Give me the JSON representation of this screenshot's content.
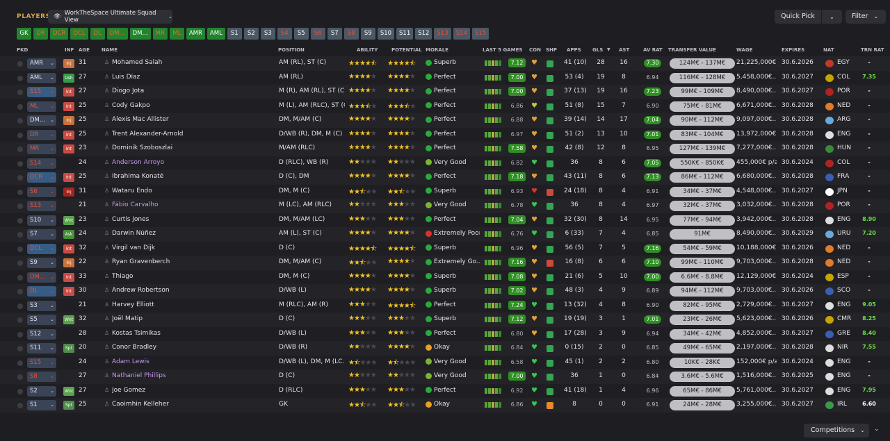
{
  "header": {
    "section_title": "PLAYERS",
    "view_name": "WorkTheSpace Ultimate Squad View",
    "quick_pick": "Quick Pick",
    "filter": "Filter"
  },
  "position_pills": [
    {
      "label": "GK",
      "style": "g"
    },
    {
      "label": "DR",
      "style": "gr"
    },
    {
      "label": "DCR",
      "style": "gr"
    },
    {
      "label": "DCL",
      "style": "gr"
    },
    {
      "label": "DL",
      "style": "gr"
    },
    {
      "label": "DM...",
      "style": "gr"
    },
    {
      "label": "DM...",
      "style": "g"
    },
    {
      "label": "MR",
      "style": "gr"
    },
    {
      "label": "ML",
      "style": "gr"
    },
    {
      "label": "AMR",
      "style": "g"
    },
    {
      "label": "AML",
      "style": "g"
    },
    {
      "label": "S1",
      "style": "s"
    },
    {
      "label": "S2",
      "style": "s"
    },
    {
      "label": "S3",
      "style": "s"
    },
    {
      "label": "S4",
      "style": "sr"
    },
    {
      "label": "S5",
      "style": "s"
    },
    {
      "label": "S6",
      "style": "sr"
    },
    {
      "label": "S7",
      "style": "s"
    },
    {
      "label": "S8",
      "style": "sr"
    },
    {
      "label": "S9",
      "style": "s"
    },
    {
      "label": "S10",
      "style": "s"
    },
    {
      "label": "S11",
      "style": "s"
    },
    {
      "label": "S12",
      "style": "s"
    },
    {
      "label": "S13",
      "style": "sr"
    },
    {
      "label": "S14",
      "style": "sr"
    },
    {
      "label": "S15",
      "style": "sr"
    }
  ],
  "columns": {
    "pkd": "PKD",
    "inf": "INF",
    "age": "AGE",
    "name": "NAME",
    "position": "POSITION",
    "ability": "ABILITY",
    "potential": "POTENTIAL",
    "morale": "MORALE",
    "last5": "LAST 5 GAMES",
    "con": "CON",
    "shp": "SHP",
    "apps": "APPS",
    "gls": "GLS",
    "ast": "AST",
    "avrat": "AV RAT",
    "tv": "TRANSFER VALUE",
    "wage": "WAGE",
    "expires": "EXPIRES",
    "nat": "NAT",
    "trnrat": "TRN RAT"
  },
  "players": [
    {
      "pkd": "AMR",
      "pkd_style": "",
      "inf": "Inj",
      "inf_style": "inj",
      "age": "31",
      "name": "Mohamed Salah",
      "loan": false,
      "position": "AM (RL), ST (C)",
      "ability": 4.5,
      "potential": 4.5,
      "morale": "Superb",
      "morale_style": "sup",
      "last5": "7.12",
      "last5_hl": true,
      "con_color": "#e2a03a",
      "shp": "gr",
      "apps": "41 (10)",
      "gls": "28",
      "ast": "16",
      "avrat": "7.30",
      "avrat_hl": true,
      "tv": "124M€ - 137M€",
      "wage": "21,225,000€...",
      "expires": "30.6.2026",
      "nat": "EGY",
      "flag": "#c0392b",
      "trn": "-",
      "trn_style": "wh"
    },
    {
      "pkd": "AML",
      "pkd_style": "",
      "inf": "Ush",
      "inf_style": "ush",
      "age": "27",
      "name": "Luis Díaz",
      "loan": false,
      "position": "AM (RL)",
      "ability": 4,
      "potential": 4,
      "morale": "Perfect",
      "morale_style": "perf",
      "last5": "7.00",
      "last5_hl": true,
      "con_color": "#e2a03a",
      "shp": "gr",
      "apps": "53 (4)",
      "gls": "19",
      "ast": "8",
      "avrat": "6.94",
      "avrat_hl": false,
      "tv": "116M€ - 128M€",
      "wage": "5,458,000€...",
      "expires": "30.6.2027",
      "nat": "COL",
      "flag": "#c8a400",
      "trn": "7.35",
      "trn_style": "gr"
    },
    {
      "pkd": "S15",
      "pkd_style": "blue red",
      "inf": "Int",
      "inf_style": "int",
      "age": "27",
      "name": "Diogo Jota",
      "loan": false,
      "position": "M (R), AM (RL), ST (C)",
      "ability": 4,
      "potential": 4,
      "morale": "Perfect",
      "morale_style": "perf",
      "last5": "7.00",
      "last5_hl": true,
      "con_color": "#e2a03a",
      "shp": "gr",
      "apps": "37 (13)",
      "gls": "19",
      "ast": "16",
      "avrat": "7.23",
      "avrat_hl": true,
      "tv": "99M€ - 109M€",
      "wage": "8,490,000€...",
      "expires": "30.6.2027",
      "nat": "POR",
      "flag": "#b22222",
      "trn": "-",
      "trn_style": "wh"
    },
    {
      "pkd": "ML",
      "pkd_style": "red",
      "inf": "Int",
      "inf_style": "int",
      "age": "25",
      "name": "Cody Gakpo",
      "loan": false,
      "position": "M (L), AM (RLC), ST (C)",
      "ability": 3.5,
      "potential": 3.5,
      "morale": "Perfect",
      "morale_style": "perf",
      "last5": "6.86",
      "last5_hl": false,
      "con_color": "#c5c53a",
      "shp": "gr",
      "apps": "51 (8)",
      "gls": "15",
      "ast": "7",
      "avrat": "6.90",
      "avrat_hl": false,
      "tv": "75M€ - 81M€",
      "wage": "6,671,000€...",
      "expires": "30.6.2028",
      "nat": "NED",
      "flag": "#e07b2a",
      "trn": "-",
      "trn_style": "wh"
    },
    {
      "pkd": "DM...",
      "pkd_style": "",
      "inf": "Inj",
      "inf_style": "inj",
      "age": "25",
      "name": "Alexis Mac Allister",
      "loan": false,
      "position": "DM, M/AM (C)",
      "ability": 4,
      "potential": 4,
      "morale": "Perfect",
      "morale_style": "perf",
      "last5": "6.88",
      "last5_hl": false,
      "con_color": "#e2a03a",
      "shp": "gr",
      "apps": "39 (14)",
      "gls": "14",
      "ast": "17",
      "avrat": "7.04",
      "avrat_hl": true,
      "tv": "90M€ - 112M€",
      "wage": "9,097,000€...",
      "expires": "30.6.2028",
      "nat": "ARG",
      "flag": "#6aa9dd",
      "trn": "-",
      "trn_style": "wh"
    },
    {
      "pkd": "DR",
      "pkd_style": "red",
      "inf": "Int",
      "inf_style": "int",
      "age": "25",
      "name": "Trent Alexander-Arnold",
      "loan": false,
      "position": "D/WB (R), DM, M (C)",
      "ability": 4,
      "potential": 4,
      "morale": "Perfect",
      "morale_style": "perf",
      "last5": "6.97",
      "last5_hl": false,
      "con_color": "#e2a03a",
      "shp": "gr",
      "apps": "51 (2)",
      "gls": "13",
      "ast": "10",
      "avrat": "7.01",
      "avrat_hl": true,
      "tv": "83M€ - 104M€",
      "wage": "13,972,000€...",
      "expires": "30.6.2028",
      "nat": "ENG",
      "flag": "#dddddd",
      "trn": "-",
      "trn_style": "wh"
    },
    {
      "pkd": "MR",
      "pkd_style": "red",
      "inf": "Int",
      "inf_style": "int",
      "age": "23",
      "name": "Dominik Szoboszlai",
      "loan": false,
      "position": "M/AM (RLC)",
      "ability": 4,
      "potential": 4,
      "morale": "Perfect",
      "morale_style": "perf",
      "last5": "7.58",
      "last5_hl": true,
      "con_color": "#e2a03a",
      "shp": "gr",
      "apps": "42 (8)",
      "gls": "12",
      "ast": "8",
      "avrat": "6.95",
      "avrat_hl": false,
      "tv": "127M€ - 139M€",
      "wage": "7,277,000€...",
      "expires": "30.6.2028",
      "nat": "HUN",
      "flag": "#3a8a3a",
      "trn": "-",
      "trn_style": "wh"
    },
    {
      "pkd": "S14",
      "pkd_style": "red",
      "inf": "",
      "inf_style": "",
      "age": "24",
      "name": "Anderson Arroyo",
      "loan": true,
      "position": "D (RLC), WB (R)",
      "ability": 2,
      "potential": 2,
      "morale": "Very Good",
      "morale_style": "vg",
      "last5": "6.82",
      "last5_hl": false,
      "con_color": "#35c653",
      "shp": "gr",
      "apps": "36",
      "gls": "8",
      "ast": "6",
      "avrat": "7.05",
      "avrat_hl": true,
      "tv": "550K€ - 850K€",
      "wage": "455,000€ p/a",
      "expires": "30.6.2024",
      "nat": "COL",
      "flag": "#b22222",
      "trn": "-",
      "trn_style": "wh"
    },
    {
      "pkd": "DCR",
      "pkd_style": "blue red",
      "inf": "Int",
      "inf_style": "int",
      "age": "25",
      "name": "Ibrahima Konaté",
      "loan": false,
      "position": "D (C), DM",
      "ability": 4,
      "potential": 4,
      "morale": "Perfect",
      "morale_style": "perf",
      "last5": "7.18",
      "last5_hl": true,
      "con_color": "#e2a03a",
      "shp": "gr",
      "apps": "43 (11)",
      "gls": "8",
      "ast": "6",
      "avrat": "7.13",
      "avrat_hl": true,
      "tv": "86M€ - 112M€",
      "wage": "6,680,000€...",
      "expires": "30.6.2028",
      "nat": "FRA",
      "flag": "#3a5fb0",
      "trn": "-",
      "trn_style": "wh"
    },
    {
      "pkd": "S6",
      "pkd_style": "red",
      "inf": "Inj",
      "inf_style": "inj2",
      "age": "31",
      "name": "Wataru Endo",
      "loan": false,
      "position": "DM, M (C)",
      "ability": 2.5,
      "potential": 2.5,
      "morale": "Superb",
      "morale_style": "sup",
      "last5": "6.93",
      "last5_hl": false,
      "con_color": "#d03a2a",
      "shp": "rd",
      "apps": "24 (18)",
      "gls": "8",
      "ast": "4",
      "avrat": "6.91",
      "avrat_hl": false,
      "tv": "34M€ - 37M€",
      "wage": "4,548,000€...",
      "expires": "30.6.2027",
      "nat": "JPN",
      "flag": "#ffffff",
      "trn": "-",
      "trn_style": "wh"
    },
    {
      "pkd": "S13",
      "pkd_style": "red",
      "inf": "",
      "inf_style": "",
      "age": "21",
      "name": "Fábio Carvalho",
      "loan": true,
      "position": "M (LC), AM (RLC)",
      "ability": 2,
      "potential": 3,
      "morale": "Very Good",
      "morale_style": "vg",
      "last5": "6.78",
      "last5_hl": false,
      "con_color": "#35c653",
      "shp": "gr",
      "apps": "36",
      "gls": "8",
      "ast": "4",
      "avrat": "6.97",
      "avrat_hl": false,
      "tv": "32M€ - 37M€",
      "wage": "3,032,000€...",
      "expires": "30.6.2028",
      "nat": "POR",
      "flag": "#b22222",
      "trn": "-",
      "trn_style": "wh"
    },
    {
      "pkd": "S10",
      "pkd_style": "",
      "inf": "Wnt",
      "inf_style": "wnt",
      "age": "23",
      "name": "Curtis Jones",
      "loan": false,
      "position": "DM, M/AM (LC)",
      "ability": 3,
      "potential": 3,
      "morale": "Perfect",
      "morale_style": "perf",
      "last5": "7.04",
      "last5_hl": true,
      "con_color": "#e2a03a",
      "shp": "gr",
      "apps": "32 (30)",
      "gls": "8",
      "ast": "14",
      "avrat": "6.95",
      "avrat_hl": false,
      "tv": "77M€ - 94M€",
      "wage": "3,942,000€...",
      "expires": "30.6.2028",
      "nat": "ENG",
      "flag": "#dddddd",
      "trn": "8.90",
      "trn_style": "gr"
    },
    {
      "pkd": "S7",
      "pkd_style": "",
      "inf": "Ask",
      "inf_style": "ask",
      "age": "24",
      "name": "Darwin Núñez",
      "loan": false,
      "position": "AM (L), ST (C)",
      "ability": 4,
      "potential": 4,
      "morale": "Extremely Poor",
      "morale_style": "ep",
      "last5": "6.76",
      "last5_hl": false,
      "con_color": "#35c653",
      "shp": "gr",
      "apps": "6 (33)",
      "gls": "7",
      "ast": "4",
      "avrat": "6.85",
      "avrat_hl": false,
      "tv": "91M€",
      "wage": "8,490,000€...",
      "expires": "30.6.2029",
      "nat": "URU",
      "flag": "#6aa9dd",
      "trn": "7.20",
      "trn_style": "gr"
    },
    {
      "pkd": "DCL",
      "pkd_style": "blue red",
      "inf": "Int",
      "inf_style": "int",
      "age": "32",
      "name": "Virgil van Dijk",
      "loan": false,
      "position": "D (C)",
      "ability": 4.5,
      "potential": 4.5,
      "morale": "Superb",
      "morale_style": "sup",
      "last5": "6.96",
      "last5_hl": false,
      "con_color": "#e2a03a",
      "shp": "gr",
      "apps": "56 (5)",
      "gls": "7",
      "ast": "5",
      "avrat": "7.16",
      "avrat_hl": true,
      "tv": "54M€ - 59M€",
      "wage": "10,188,000€...",
      "expires": "30.6.2026",
      "nat": "NED",
      "flag": "#e07b2a",
      "trn": "-",
      "trn_style": "wh"
    },
    {
      "pkd": "S9",
      "pkd_style": "",
      "inf": "Inj",
      "inf_style": "inj",
      "age": "22",
      "name": "Ryan Gravenberch",
      "loan": false,
      "position": "DM, M/AM (C)",
      "ability": 2.5,
      "potential": 4,
      "morale": "Extremely Go...",
      "morale_style": "eg",
      "last5": "7.16",
      "last5_hl": true,
      "con_color": "#e2a03a",
      "shp": "rd",
      "apps": "16 (8)",
      "gls": "6",
      "ast": "6",
      "avrat": "7.10",
      "avrat_hl": true,
      "tv": "99M€ - 110M€",
      "wage": "9,703,000€...",
      "expires": "30.6.2028",
      "nat": "NED",
      "flag": "#e07b2a",
      "trn": "-",
      "trn_style": "wh"
    },
    {
      "pkd": "DM...",
      "pkd_style": "red",
      "inf": "Int",
      "inf_style": "int",
      "age": "33",
      "name": "Thiago",
      "loan": false,
      "position": "DM, M (C)",
      "ability": 4,
      "potential": 4,
      "morale": "Superb",
      "morale_style": "sup",
      "last5": "7.08",
      "last5_hl": true,
      "con_color": "#e2a03a",
      "shp": "gr",
      "apps": "21 (6)",
      "gls": "5",
      "ast": "10",
      "avrat": "7.00",
      "avrat_hl": true,
      "tv": "6.6M€ - 8.8M€",
      "wage": "12,129,000€...",
      "expires": "30.6.2024",
      "nat": "ESP",
      "flag": "#c8a400",
      "trn": "-",
      "trn_style": "wh"
    },
    {
      "pkd": "DL",
      "pkd_style": "blue red",
      "inf": "Int",
      "inf_style": "int",
      "age": "30",
      "name": "Andrew Robertson",
      "loan": false,
      "position": "D/WB (L)",
      "ability": 4,
      "potential": 4,
      "morale": "Superb",
      "morale_style": "sup",
      "last5": "7.02",
      "last5_hl": true,
      "con_color": "#e2a03a",
      "shp": "gr",
      "apps": "48 (3)",
      "gls": "4",
      "ast": "9",
      "avrat": "6.89",
      "avrat_hl": false,
      "tv": "94M€ - 112M€",
      "wage": "9,703,000€...",
      "expires": "30.6.2026",
      "nat": "SCO",
      "flag": "#3a5fb0",
      "trn": "-",
      "trn_style": "wh"
    },
    {
      "pkd": "S3",
      "pkd_style": "",
      "inf": "",
      "inf_style": "",
      "age": "21",
      "name": "Harvey Elliott",
      "loan": false,
      "position": "M (RLC), AM (R)",
      "ability": 3,
      "potential": 4.5,
      "morale": "Perfect",
      "morale_style": "perf",
      "last5": "7.24",
      "last5_hl": true,
      "con_color": "#35c653",
      "shp": "gr",
      "apps": "13 (32)",
      "gls": "4",
      "ast": "8",
      "avrat": "6.90",
      "avrat_hl": false,
      "tv": "82M€ - 95M€",
      "wage": "2,729,000€...",
      "expires": "30.6.2027",
      "nat": "ENG",
      "flag": "#dddddd",
      "trn": "9.05",
      "trn_style": "gr"
    },
    {
      "pkd": "S5",
      "pkd_style": "",
      "inf": "Wnt",
      "inf_style": "wnt",
      "age": "32",
      "name": "Joël Matip",
      "loan": false,
      "position": "D (C)",
      "ability": 3,
      "potential": 3,
      "morale": "Superb",
      "morale_style": "sup",
      "last5": "7.12",
      "last5_hl": true,
      "con_color": "#e2a03a",
      "shp": "gr",
      "apps": "19 (19)",
      "gls": "3",
      "ast": "1",
      "avrat": "7.01",
      "avrat_hl": true,
      "tv": "23M€ - 26M€",
      "wage": "5,623,000€...",
      "expires": "30.6.2026",
      "nat": "CMR",
      "flag": "#c8a400",
      "trn": "8.25",
      "trn_style": "gr"
    },
    {
      "pkd": "S12",
      "pkd_style": "",
      "inf": "",
      "inf_style": "",
      "age": "28",
      "name": "Kostas Tsimikas",
      "loan": false,
      "position": "D/WB (L)",
      "ability": 3,
      "potential": 3,
      "morale": "Perfect",
      "morale_style": "perf",
      "last5": "6.80",
      "last5_hl": false,
      "con_color": "#e2a03a",
      "shp": "gr",
      "apps": "17 (28)",
      "gls": "3",
      "ast": "9",
      "avrat": "6.94",
      "avrat_hl": false,
      "tv": "34M€ - 42M€",
      "wage": "4,852,000€...",
      "expires": "30.6.2027",
      "nat": "GRE",
      "flag": "#3a5fb0",
      "trn": "8.40",
      "trn_style": "gr"
    },
    {
      "pkd": "S11",
      "pkd_style": "",
      "inf": "Spt",
      "inf_style": "spt",
      "age": "20",
      "name": "Conor Bradley",
      "loan": false,
      "position": "D/WB (R)",
      "ability": 2,
      "potential": 4,
      "morale": "Okay",
      "morale_style": "ok",
      "last5": "6.84",
      "last5_hl": false,
      "con_color": "#35c653",
      "shp": "gr",
      "apps": "0 (15)",
      "gls": "2",
      "ast": "0",
      "avrat": "6.85",
      "avrat_hl": false,
      "tv": "49M€ - 65M€",
      "wage": "2,197,000€...",
      "expires": "30.6.2028",
      "nat": "NIR",
      "flag": "#dddddd",
      "trn": "7.55",
      "trn_style": "gr"
    },
    {
      "pkd": "S15",
      "pkd_style": "red",
      "inf": "",
      "inf_style": "",
      "age": "24",
      "name": "Adam Lewis",
      "loan": true,
      "position": "D/WB (L), DM, M (LC...",
      "ability": 1.5,
      "potential": 1.5,
      "morale": "Very Good",
      "morale_style": "vg",
      "last5": "6.58",
      "last5_hl": false,
      "con_color": "#35c653",
      "shp": "gr",
      "apps": "45 (1)",
      "gls": "2",
      "ast": "2",
      "avrat": "6.80",
      "avrat_hl": false,
      "tv": "10K€ - 28K€",
      "wage": "152,000€ p/a",
      "expires": "30.6.2024",
      "nat": "ENG",
      "flag": "#dddddd",
      "trn": "-",
      "trn_style": "wh"
    },
    {
      "pkd": "S8",
      "pkd_style": "red",
      "inf": "",
      "inf_style": "",
      "age": "27",
      "name": "Nathaniel Phillips",
      "loan": true,
      "position": "D (C)",
      "ability": 2,
      "potential": 2,
      "morale": "Very Good",
      "morale_style": "vg",
      "last5": "7.00",
      "last5_hl": true,
      "con_color": "#35c653",
      "shp": "gr",
      "apps": "36",
      "gls": "1",
      "ast": "0",
      "avrat": "6.84",
      "avrat_hl": false,
      "tv": "3.6M€ - 5.6M€",
      "wage": "1,516,000€...",
      "expires": "30.6.2025",
      "nat": "ENG",
      "flag": "#dddddd",
      "trn": "-",
      "trn_style": "wh"
    },
    {
      "pkd": "S2",
      "pkd_style": "",
      "inf": "Wnt",
      "inf_style": "wnt",
      "age": "27",
      "name": "Joe Gomez",
      "loan": false,
      "position": "D (RLC)",
      "ability": 3,
      "potential": 3,
      "morale": "Perfect",
      "morale_style": "perf",
      "last5": "6.92",
      "last5_hl": false,
      "con_color": "#35c653",
      "shp": "gr",
      "apps": "41 (18)",
      "gls": "1",
      "ast": "4",
      "avrat": "6.96",
      "avrat_hl": false,
      "tv": "65M€ - 86M€",
      "wage": "5,761,000€...",
      "expires": "30.6.2027",
      "nat": "ENG",
      "flag": "#dddddd",
      "trn": "7.95",
      "trn_style": "gr"
    },
    {
      "pkd": "S1",
      "pkd_style": "",
      "inf": "Spt",
      "inf_style": "spt",
      "age": "25",
      "name": "Caoimhin Kelleher",
      "loan": false,
      "position": "GK",
      "ability": 2.5,
      "potential": 2.5,
      "morale": "Okay",
      "morale_style": "ok",
      "last5": "6.86",
      "last5_hl": false,
      "con_color": "#35c653",
      "shp": "or",
      "apps": "8",
      "gls": "0",
      "ast": "0",
      "avrat": "6.91",
      "avrat_hl": false,
      "tv": "24M€ - 28M€",
      "wage": "3,255,000€...",
      "expires": "30.6.2027",
      "nat": "IRL",
      "flag": "#3a9a4a",
      "trn": "6.60",
      "trn_style": "wh"
    }
  ],
  "footer": {
    "competitions": "Competitions"
  }
}
